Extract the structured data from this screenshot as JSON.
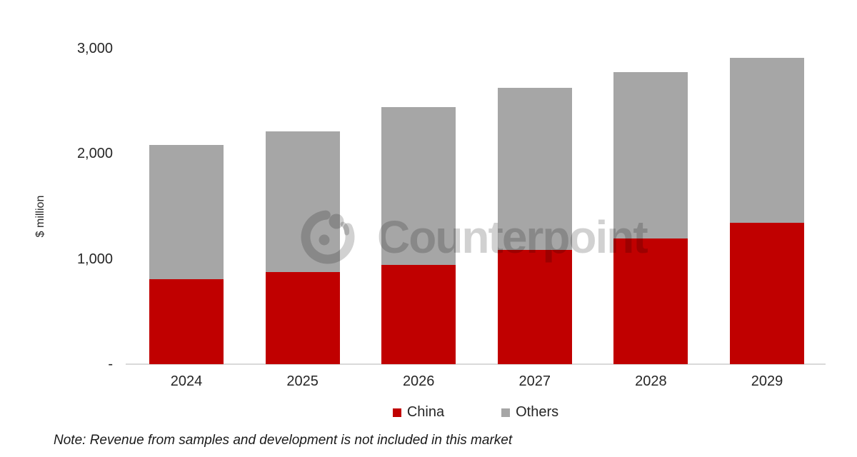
{
  "chart_data": {
    "type": "bar",
    "stacked": true,
    "categories": [
      "2024",
      "2025",
      "2026",
      "2027",
      "2028",
      "2029"
    ],
    "series": [
      {
        "name": "China",
        "color": "#C00000",
        "values": [
          810,
          875,
          945,
          1085,
          1195,
          1345
        ]
      },
      {
        "name": "Others",
        "color": "#A6A6A6",
        "values": [
          1275,
          1340,
          1500,
          1540,
          1580,
          1565
        ]
      }
    ],
    "title": "",
    "xlabel": "",
    "ylabel": "$ million",
    "ylim": [
      0,
      3000
    ],
    "yticks": [
      {
        "value": 0,
        "label": "-"
      },
      {
        "value": 1000,
        "label": "1,000"
      },
      {
        "value": 2000,
        "label": "2,000"
      },
      {
        "value": 3000,
        "label": "3,000"
      }
    ],
    "grid": false,
    "legend_position": "bottom",
    "axis_line_color": "#D9D9D9",
    "text_color": "#262626"
  },
  "watermark": {
    "text": "Counterpoint",
    "logo": "counterpoint-logo",
    "color": "rgba(0,0,0,0.18)"
  },
  "note": "Note: Revenue from samples and development is not included in this market"
}
